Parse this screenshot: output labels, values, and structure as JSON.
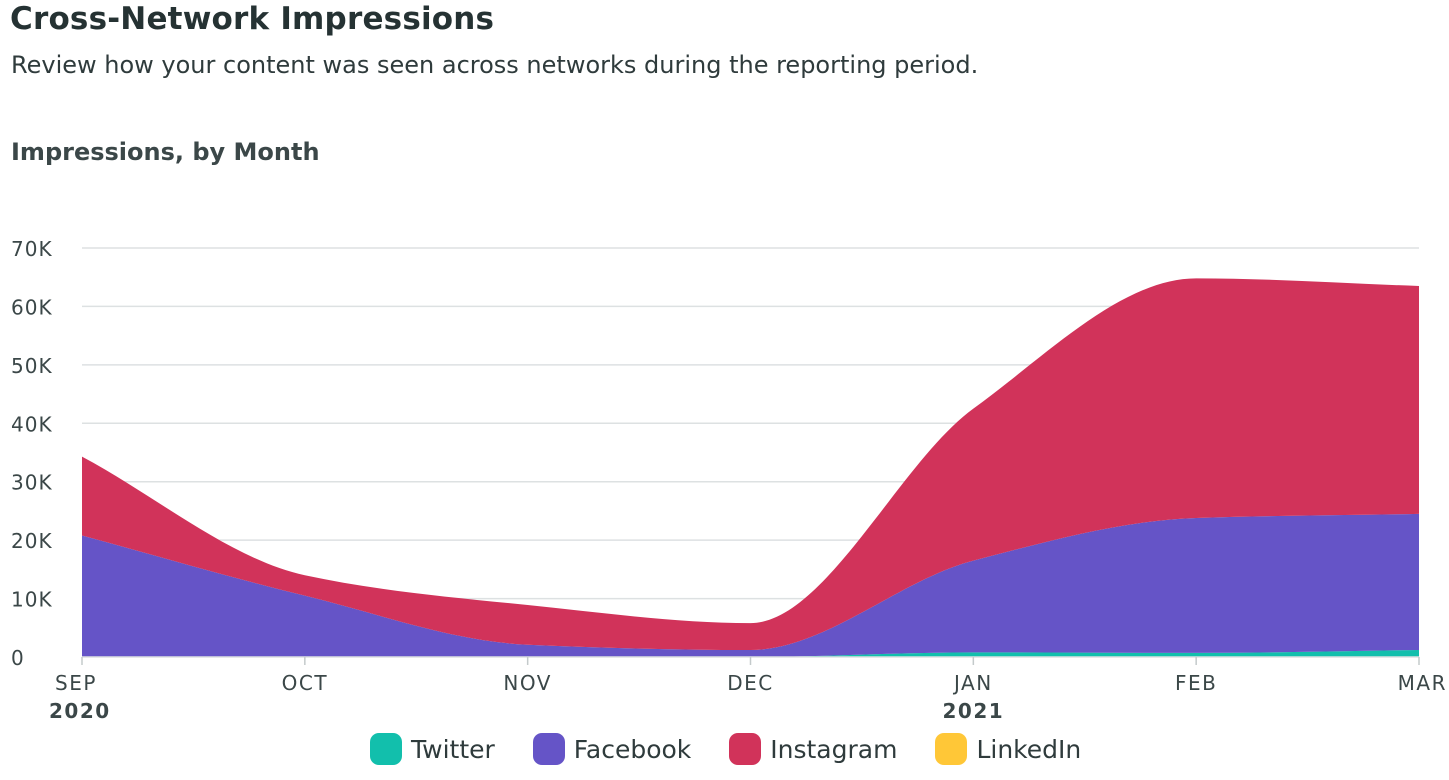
{
  "header": {
    "title": "Cross-Network Impressions",
    "subtitle": "Review how your content was seen across networks during the reporting period."
  },
  "chart_data": {
    "type": "area",
    "stacked": true,
    "title": "Impressions, by Month",
    "categories": [
      "SEP",
      "OCT",
      "NOV",
      "DEC",
      "JAN",
      "FEB",
      "MAR"
    ],
    "year_labels": [
      {
        "category": "SEP",
        "label": "2020"
      },
      {
        "category": "JAN",
        "label": "2021"
      }
    ],
    "y_ticks": [
      "0",
      "10K",
      "20K",
      "30K",
      "40K",
      "50K",
      "60K",
      "70K"
    ],
    "ylim": [
      0,
      70000
    ],
    "grid": true,
    "legend_position": "bottom",
    "series": [
      {
        "name": "Twitter",
        "color": "#12bfac",
        "values": [
          0,
          0,
          0,
          0,
          800,
          700,
          1200
        ]
      },
      {
        "name": "Facebook",
        "color": "#6554c7",
        "values": [
          20800,
          10500,
          2100,
          1200,
          15700,
          23100,
          23300
        ]
      },
      {
        "name": "Instagram",
        "color": "#d1335a",
        "values": [
          13500,
          3500,
          6800,
          4600,
          26000,
          41000,
          39000
        ]
      },
      {
        "name": "LinkedIn",
        "color": "#ffc737",
        "values": [
          0,
          0,
          0,
          0,
          0,
          0,
          0
        ]
      }
    ]
  }
}
